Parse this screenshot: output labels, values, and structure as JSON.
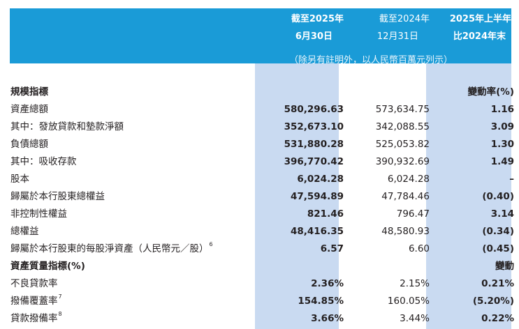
{
  "header": {
    "col1": {
      "line1": "截至2025年",
      "line2": "6月30日"
    },
    "col2": {
      "line1": "截至2024年",
      "line2": "12月31日"
    },
    "col3": {
      "line1": "2025年上半年",
      "line2": "比2024年末"
    },
    "note": "（除另有註明外，以人民幣百萬元列示）"
  },
  "colors": {
    "header_bg": "#1a9bd7",
    "column_highlight": "#c9daf1",
    "text": "#231f20"
  },
  "rows": [
    {
      "type": "section",
      "label": "規模指標",
      "col3": "變動率(%)"
    },
    {
      "label": "資產總額",
      "col1": "580,296.63",
      "col2": "573,634.75",
      "col3": "1.16"
    },
    {
      "label": "其中：發放貸款和墊款淨額",
      "col1": "352,673.10",
      "col2": "342,088.55",
      "col3": "3.09"
    },
    {
      "label": "負債總額",
      "col1": "531,880.28",
      "col2": "525,053.82",
      "col3": "1.30"
    },
    {
      "label": "其中：吸收存款",
      "col1": "396,770.42",
      "col2": "390,932.69",
      "col3": "1.49"
    },
    {
      "label": "股本",
      "col1": "6,024.28",
      "col2": "6,024.28",
      "col3": "–"
    },
    {
      "label": "歸屬於本行股東總權益",
      "col1": "47,594.89",
      "col2": "47,784.46",
      "col3": "(0.40)"
    },
    {
      "label": "非控制性權益",
      "col1": "821.46",
      "col2": "796.47",
      "col3": "3.14"
    },
    {
      "label": "總權益",
      "col1": "48,416.35",
      "col2": "48,580.93",
      "col3": "(0.34)"
    },
    {
      "label": "歸屬於本行股東的每股淨資產（人民幣元／股）",
      "sup": "6",
      "col1": "6.57",
      "col2": "6.60",
      "col3": "(0.45)"
    },
    {
      "type": "section",
      "label": "資產質量指標(%)",
      "col3": "變動"
    },
    {
      "label": "不良貸款率",
      "col1": "2.36%",
      "col2": "2.15%",
      "col3": "0.21%"
    },
    {
      "label": "撥備覆蓋率",
      "sup": "7",
      "col1": "154.85%",
      "col2": "160.05%",
      "col3": "(5.20%)"
    },
    {
      "label": "貸款撥備率",
      "sup": "8",
      "col1": "3.66%",
      "col2": "3.44%",
      "col3": "0.22%"
    }
  ]
}
